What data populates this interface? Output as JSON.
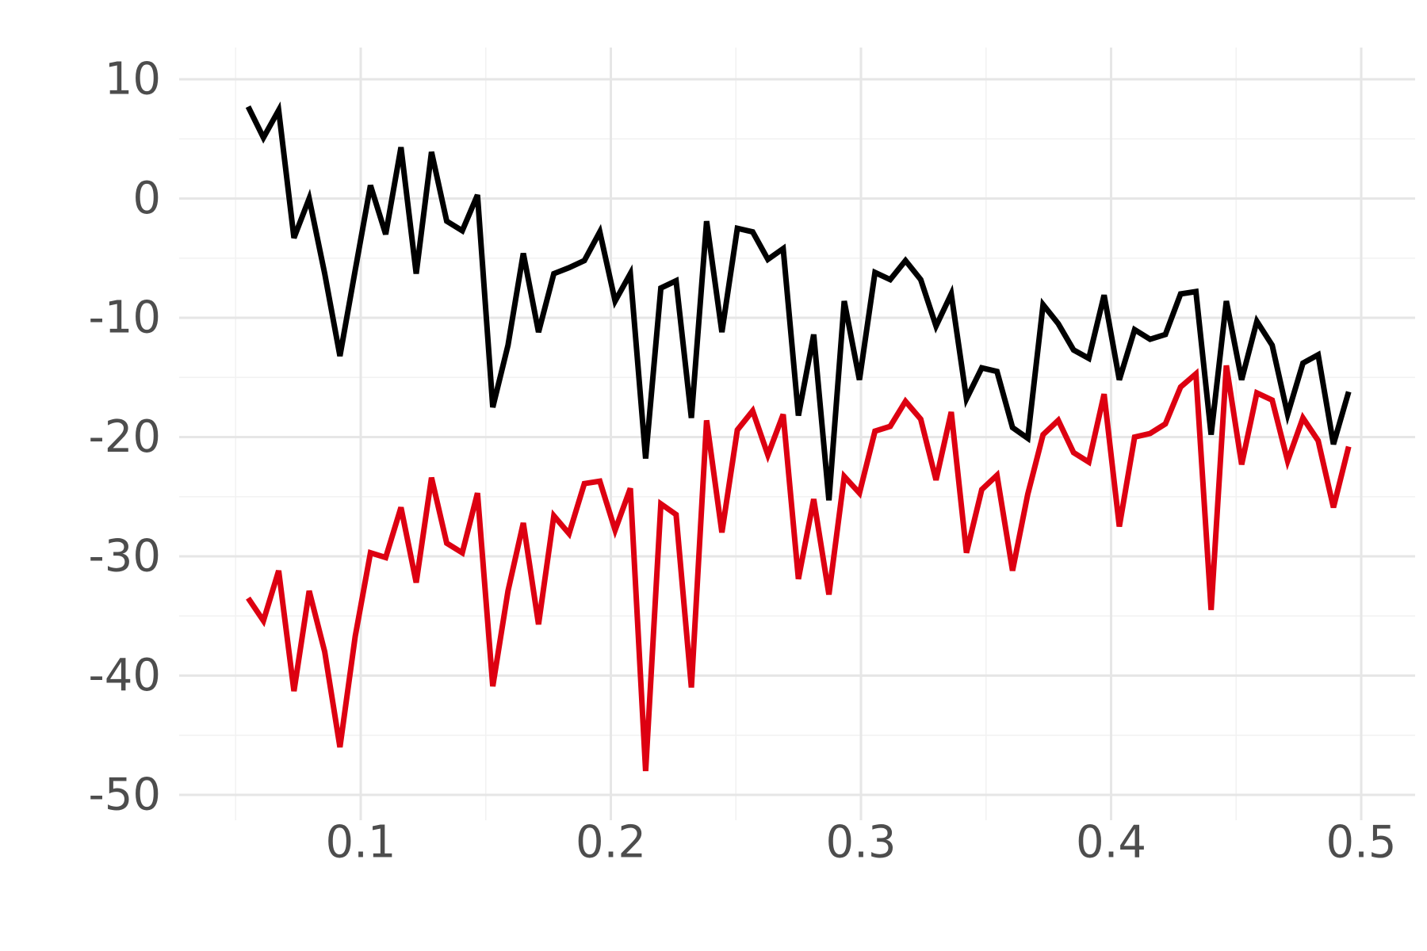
{
  "chart_data": {
    "type": "line",
    "title": "",
    "xlabel": "",
    "ylabel": "",
    "xlim": [
      0.04,
      0.51
    ],
    "ylim": [
      -50,
      10
    ],
    "x_ticks": [
      0.1,
      0.2,
      0.3,
      0.4,
      0.5
    ],
    "x_tick_labels": [
      "0.1",
      "0.2",
      "0.3",
      "0.4",
      "0.5"
    ],
    "y_ticks": [
      10,
      0,
      -10,
      -20,
      -30,
      -40,
      -50
    ],
    "y_tick_labels": [
      "10",
      "0",
      "-10",
      "-20",
      "-30",
      "-40",
      "-50"
    ],
    "grid": true,
    "legend": "none",
    "x": [
      0.055,
      0.0611,
      0.0672,
      0.0733,
      0.0794,
      0.0856,
      0.0917,
      0.0978,
      0.1039,
      0.11,
      0.1161,
      0.1222,
      0.1283,
      0.1344,
      0.1406,
      0.1467,
      0.1528,
      0.1589,
      0.165,
      0.1711,
      0.1772,
      0.1833,
      0.1894,
      0.1956,
      0.2017,
      0.2078,
      0.2139,
      0.22,
      0.2261,
      0.2322,
      0.2383,
      0.2444,
      0.2506,
      0.2567,
      0.2628,
      0.2689,
      0.275,
      0.2811,
      0.2872,
      0.2933,
      0.2994,
      0.3056,
      0.3117,
      0.3178,
      0.3239,
      0.33,
      0.3361,
      0.3422,
      0.3483,
      0.3544,
      0.3606,
      0.3667,
      0.3728,
      0.3789,
      0.385,
      0.3911,
      0.3972,
      0.4033,
      0.4094,
      0.4156,
      0.4217,
      0.4278,
      0.4339,
      0.44,
      0.4461,
      0.4522,
      0.4583,
      0.4644,
      0.4706,
      0.4767,
      0.4828,
      0.4889,
      0.495
    ],
    "series": [
      {
        "color": "#000000",
        "values": [
          7.7,
          5.1,
          7.4,
          -3.3,
          0.0,
          -6.3,
          -13.2,
          -6.0,
          1.1,
          -3.0,
          4.3,
          -6.3,
          3.9,
          -1.9,
          -2.7,
          0.3,
          -17.5,
          -12.3,
          -4.6,
          -11.2,
          -6.3,
          -5.8,
          -5.2,
          -2.8,
          -8.6,
          -6.3,
          -21.8,
          -7.5,
          -6.9,
          -18.4,
          -1.9,
          -11.2,
          -2.5,
          -2.8,
          -5.1,
          -4.2,
          -18.2,
          -11.4,
          -25.3,
          -8.6,
          -15.2,
          -6.2,
          -6.8,
          -5.2,
          -6.8,
          -10.7,
          -8.0,
          -16.8,
          -14.2,
          -14.5,
          -19.2,
          -20.1,
          -8.9,
          -10.5,
          -12.7,
          -13.4,
          -8.1,
          -15.2,
          -11.0,
          -11.8,
          -11.4,
          -8.0,
          -7.8,
          -19.8,
          -8.6,
          -15.2,
          -10.3,
          -12.3,
          -18.1,
          -13.8,
          -13.1,
          -20.6,
          -16.2
        ]
      },
      {
        "color": "#dd0011",
        "values": [
          -33.5,
          -35.4,
          -31.2,
          -41.3,
          -32.9,
          -38.0,
          -46.0,
          -36.7,
          -29.7,
          -30.1,
          -25.9,
          -32.2,
          -23.4,
          -28.9,
          -29.7,
          -24.7,
          -40.9,
          -32.9,
          -27.2,
          -35.7,
          -26.6,
          -28.1,
          -23.9,
          -23.7,
          -27.8,
          -24.3,
          -48.0,
          -25.6,
          -26.5,
          -41.0,
          -18.6,
          -28.0,
          -19.4,
          -17.8,
          -21.5,
          -18.1,
          -31.9,
          -25.2,
          -33.2,
          -23.3,
          -24.7,
          -19.5,
          -19.1,
          -17.0,
          -18.5,
          -23.6,
          -17.9,
          -29.7,
          -24.4,
          -23.2,
          -31.2,
          -24.8,
          -19.8,
          -18.6,
          -21.3,
          -22.1,
          -16.4,
          -27.5,
          -20.0,
          -19.7,
          -18.9,
          -15.8,
          -14.7,
          -34.5,
          -14.0,
          -22.3,
          -16.3,
          -16.9,
          -22.0,
          -18.4,
          -20.3,
          -25.9,
          -20.8
        ]
      }
    ]
  }
}
